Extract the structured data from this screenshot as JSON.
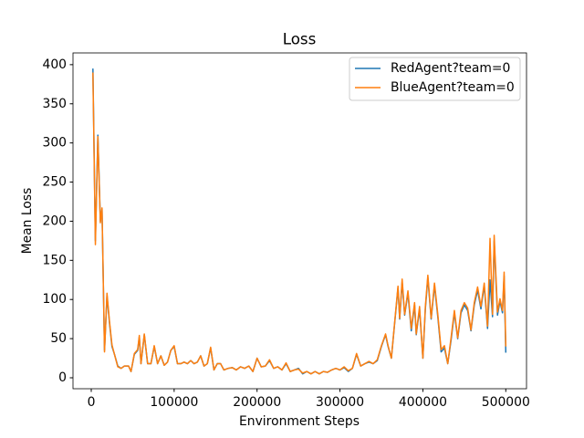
{
  "chart_data": {
    "type": "line",
    "title": "Loss",
    "x_label": "Environment Steps",
    "y_label": "Mean Loss",
    "x": [
      2000,
      5000,
      8000,
      11000,
      13000,
      16000,
      19000,
      22000,
      25000,
      28000,
      32000,
      36000,
      40000,
      45000,
      48000,
      52000,
      56000,
      58000,
      60000,
      64000,
      68000,
      72000,
      76000,
      80000,
      84000,
      88000,
      92000,
      96000,
      100000,
      104000,
      108000,
      112000,
      116000,
      120000,
      124000,
      128000,
      132000,
      136000,
      140000,
      144000,
      148000,
      152000,
      156000,
      160000,
      165000,
      170000,
      175000,
      180000,
      185000,
      190000,
      195000,
      200000,
      205000,
      210000,
      215000,
      220000,
      225000,
      230000,
      235000,
      240000,
      245000,
      250000,
      255000,
      260000,
      265000,
      270000,
      275000,
      280000,
      285000,
      290000,
      295000,
      300000,
      305000,
      310000,
      315000,
      320000,
      325000,
      330000,
      335000,
      340000,
      345000,
      350000,
      355000,
      358000,
      362000,
      366000,
      370000,
      372000,
      375000,
      378000,
      382000,
      386000,
      390000,
      392000,
      396000,
      400000,
      403000,
      406000,
      410000,
      414000,
      418000,
      422000,
      426000,
      430000,
      434000,
      438000,
      442000,
      446000,
      450000,
      454000,
      458000,
      462000,
      466000,
      470000,
      474000,
      478000,
      481000,
      484000,
      486000,
      490000,
      493000,
      496000,
      498000,
      500000
    ],
    "series": [
      {
        "name": "RedAgent?team=0",
        "color": "#1f77b4",
        "values": [
          395,
          175,
          310,
          200,
          215,
          35,
          105,
          70,
          40,
          30,
          15,
          12,
          15,
          15,
          8,
          30,
          35,
          52,
          18,
          55,
          18,
          18,
          40,
          18,
          28,
          16,
          20,
          35,
          40,
          18,
          18,
          20,
          18,
          22,
          18,
          20,
          28,
          15,
          18,
          38,
          10,
          18,
          18,
          10,
          12,
          13,
          10,
          14,
          12,
          15,
          8,
          25,
          14,
          15,
          22,
          12,
          14,
          10,
          18,
          8,
          10,
          12,
          5,
          8,
          5,
          8,
          5,
          8,
          7,
          10,
          12,
          10,
          13,
          8,
          12,
          30,
          15,
          18,
          20,
          18,
          22,
          40,
          55,
          40,
          25,
          70,
          115,
          75,
          122,
          80,
          108,
          60,
          93,
          55,
          88,
          25,
          88,
          128,
          75,
          118,
          78,
          33,
          38,
          18,
          48,
          83,
          50,
          83,
          93,
          86,
          60,
          93,
          112,
          88,
          118,
          63,
          125,
          78,
          175,
          80,
          98,
          83,
          130,
          32
        ]
      },
      {
        "name": "BlueAgent?team=0",
        "color": "#ff7f0e",
        "values": [
          390,
          170,
          308,
          198,
          217,
          33,
          108,
          72,
          42,
          30,
          14,
          12,
          15,
          15,
          8,
          31,
          36,
          54,
          18,
          56,
          18,
          18,
          41,
          18,
          28,
          16,
          20,
          35,
          41,
          18,
          18,
          20,
          18,
          22,
          18,
          20,
          28,
          15,
          18,
          39,
          10,
          18,
          18,
          10,
          12,
          13,
          10,
          14,
          12,
          15,
          8,
          25,
          14,
          15,
          23,
          12,
          14,
          10,
          19,
          8,
          10,
          11,
          6,
          8,
          5,
          8,
          5,
          8,
          7,
          10,
          12,
          10,
          14,
          9,
          12,
          31,
          15,
          18,
          21,
          18,
          23,
          41,
          56,
          41,
          25,
          71,
          117,
          76,
          126,
          81,
          111,
          63,
          96,
          56,
          91,
          25,
          91,
          131,
          76,
          121,
          81,
          36,
          41,
          18,
          51,
          86,
          51,
          86,
          96,
          89,
          61,
          96,
          116,
          91,
          121,
          66,
          178,
          81,
          182,
          84,
          101,
          86,
          135,
          40
        ]
      }
    ],
    "xlim": [
      -22000,
      525000
    ],
    "ylim": [
      -14,
      415
    ],
    "xticks": [
      0,
      100000,
      200000,
      300000,
      400000,
      500000
    ],
    "yticks": [
      0,
      50,
      100,
      150,
      200,
      250,
      300,
      350,
      400
    ],
    "legend": "upper right"
  }
}
